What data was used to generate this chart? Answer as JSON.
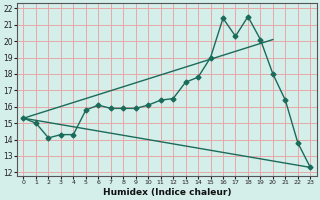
{
  "xlabel": "Humidex (Indice chaleur)",
  "bg_color": "#d4eeea",
  "grid_color": "#e8a8a8",
  "line_color": "#1a6b5a",
  "xlim": [
    -0.5,
    23.5
  ],
  "ylim": [
    11.8,
    22.3
  ],
  "xticks": [
    0,
    1,
    2,
    3,
    4,
    5,
    6,
    7,
    8,
    9,
    10,
    11,
    12,
    13,
    14,
    15,
    16,
    17,
    18,
    19,
    20,
    21,
    22,
    23
  ],
  "yticks": [
    12,
    13,
    14,
    15,
    16,
    17,
    18,
    19,
    20,
    21,
    22
  ],
  "line1_x": [
    0,
    1,
    2,
    3,
    4,
    5,
    6,
    7,
    8,
    9,
    10,
    11,
    12,
    13,
    14,
    15,
    16,
    17,
    18,
    19,
    20,
    21,
    22,
    23
  ],
  "line1_y": [
    15.3,
    15.0,
    14.1,
    14.3,
    14.3,
    15.8,
    16.1,
    15.9,
    15.9,
    15.9,
    16.1,
    16.4,
    16.5,
    17.5,
    17.8,
    19.0,
    21.4,
    20.3,
    21.5,
    20.1,
    18.0,
    16.4,
    13.8,
    12.3
  ],
  "line2_x": [
    0,
    23
  ],
  "line2_y": [
    15.3,
    12.3
  ],
  "line3_x": [
    0,
    20
  ],
  "line3_y": [
    15.3,
    20.1
  ]
}
